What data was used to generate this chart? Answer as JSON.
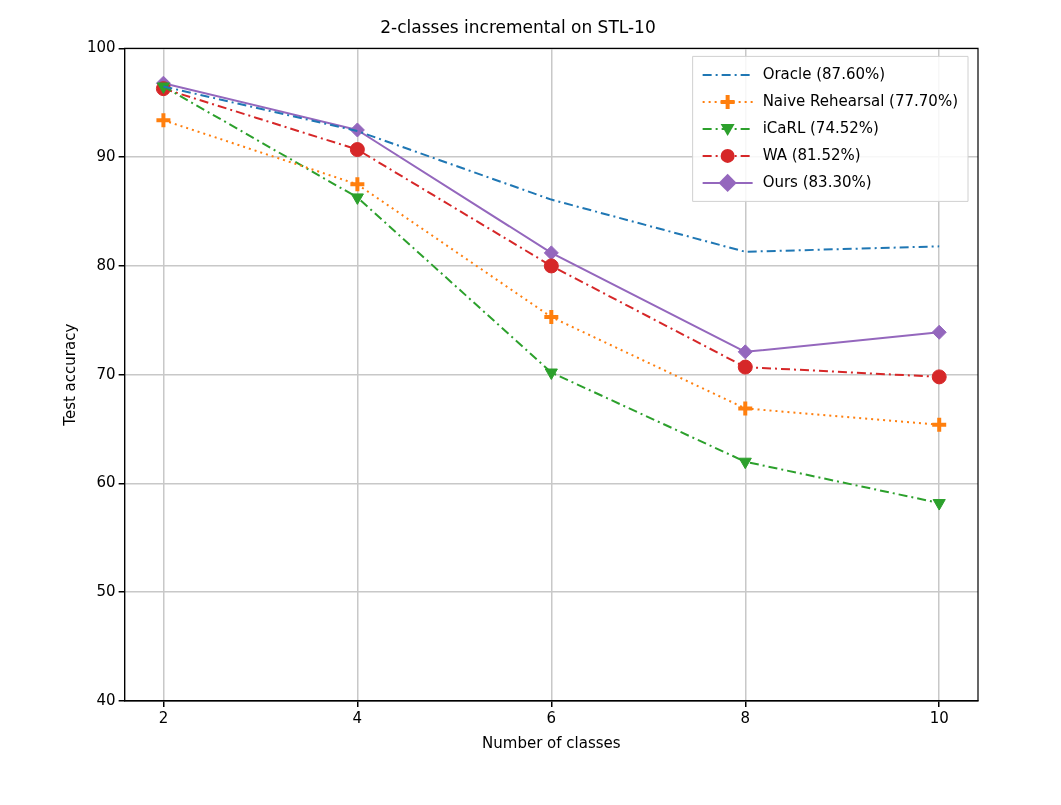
{
  "chart_data": {
    "type": "line",
    "title": "2-classes incremental on STL-10",
    "xlabel": "Number of classes",
    "ylabel": "Test accuracy",
    "x": [
      2,
      4,
      6,
      8,
      10
    ],
    "xlim": [
      1.6,
      10.4
    ],
    "xticks": [
      2,
      4,
      6,
      8,
      10
    ],
    "ylim": [
      40,
      100
    ],
    "yticks": [
      40,
      50,
      60,
      70,
      80,
      90,
      100
    ],
    "grid": true,
    "legend": "top right",
    "series": [
      {
        "name": "Oracle (87.60%)",
        "color": "#1f77b4",
        "marker": "none",
        "line_style": "dashed",
        "values": [
          96.5,
          92.4,
          86.1,
          81.3,
          81.8
        ]
      },
      {
        "name": "Naive Rehearsal (77.70%)",
        "color": "#ff7f0e",
        "marker": "cross",
        "line_style": "dotted",
        "values": [
          93.4,
          87.5,
          75.3,
          66.9,
          65.4
        ]
      },
      {
        "name": "iCaRL (74.52%)",
        "color": "#2ca02c",
        "marker": "triangle",
        "line_style": "dashed",
        "values": [
          96.5,
          86.3,
          70.2,
          62.0,
          58.2
        ]
      },
      {
        "name": "WA (81.52%)",
        "color": "#d62728",
        "marker": "circle",
        "line_style": "dashed",
        "values": [
          96.3,
          90.7,
          80.0,
          70.7,
          69.8
        ]
      },
      {
        "name": "Ours (83.30%)",
        "color": "#9467bd",
        "marker": "diamond",
        "line_style": "solid",
        "values": [
          96.8,
          92.5,
          81.2,
          72.1,
          73.9
        ]
      }
    ]
  }
}
